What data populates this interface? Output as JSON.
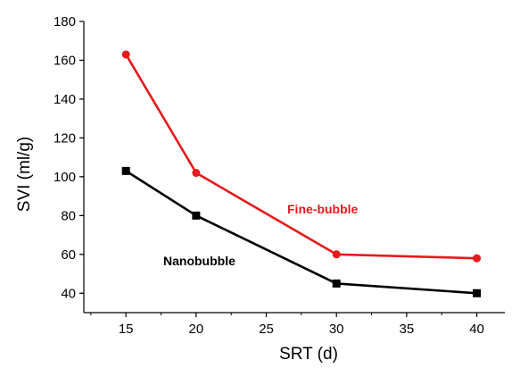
{
  "chart_data": {
    "type": "line",
    "xlabel": "SRT (d)",
    "ylabel": "SVI (ml/g)",
    "xlim": [
      12,
      42
    ],
    "ylim": [
      30,
      180
    ],
    "x_ticks": [
      15,
      20,
      25,
      30,
      35,
      40
    ],
    "y_ticks": [
      40,
      60,
      80,
      100,
      120,
      140,
      160,
      180
    ],
    "grid": false,
    "series": [
      {
        "name": "Fine-bubble",
        "color": "#e41a1c",
        "marker": "circle",
        "x": [
          15,
          20,
          30,
          40
        ],
        "y": [
          163,
          102,
          60,
          58
        ]
      },
      {
        "name": "Nanobubble",
        "color": "#000000",
        "marker": "square",
        "x": [
          15,
          20,
          30,
          40
        ],
        "y": [
          103,
          80,
          45,
          40
        ]
      }
    ]
  }
}
